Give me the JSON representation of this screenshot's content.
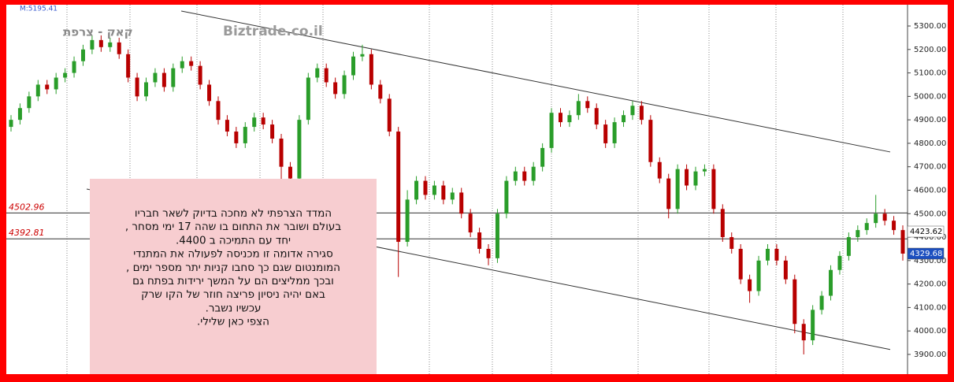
{
  "chart_data": {
    "type": "candlestick",
    "title": "קאק - צרפת",
    "watermark": "Biztrade.co.il",
    "corner_label": "M:5195.41",
    "ylim": [
      3826,
      5384
    ],
    "yticks": [
      {
        "value": 3900,
        "label": "3900.00"
      },
      {
        "value": 4000,
        "label": "4000.00"
      },
      {
        "value": 4100,
        "label": "4100.00"
      },
      {
        "value": 4200,
        "label": "4200.00"
      },
      {
        "value": 4300,
        "label": "4300.00"
      },
      {
        "value": 4400,
        "label": "4400.00"
      },
      {
        "value": 4500,
        "label": "4500.00"
      },
      {
        "value": 4600,
        "label": "4600.00"
      },
      {
        "value": 4700,
        "label": "4700.00"
      },
      {
        "value": 4800,
        "label": "4800.00"
      },
      {
        "value": 4900,
        "label": "4900.00"
      },
      {
        "value": 5000,
        "label": "5000.00"
      },
      {
        "value": 5100,
        "label": "5100.00"
      },
      {
        "value": 5200,
        "label": "5200.00"
      },
      {
        "value": 5300,
        "label": "5300.00"
      }
    ],
    "up_color": "#2a9d2a",
    "down_color": "#b80000",
    "open": [
      4870,
      4900,
      4950,
      5000,
      5050,
      5030,
      5080,
      5100,
      5150,
      5200,
      5240,
      5210,
      5230,
      5180,
      5080,
      5000,
      5060,
      5100,
      5040,
      5120,
      5150,
      5130,
      5050,
      4980,
      4900,
      4850,
      4800,
      4870,
      4910,
      4880,
      4820,
      4700,
      4650,
      4900,
      5080,
      5120,
      5060,
      5010,
      5090,
      5170,
      5180,
      5050,
      4990,
      4850,
      4380,
      4560,
      4640,
      4580,
      4620,
      4560,
      4590,
      4500,
      4420,
      4350,
      4310,
      4500,
      4640,
      4680,
      4640,
      4700,
      4780,
      4930,
      4890,
      4920,
      4980,
      4950,
      4880,
      4800,
      4890,
      4920,
      4960,
      4900,
      4720,
      4650,
      4520,
      4690,
      4620,
      4680,
      4690,
      4520,
      4400,
      4350,
      4220,
      4170,
      4300,
      4350,
      4300,
      4220,
      4030,
      3960,
      4090,
      4150,
      4260,
      4320,
      4400,
      4430,
      4460,
      4500,
      4470,
      4430
    ],
    "high": [
      4920,
      4970,
      5020,
      5070,
      5070,
      5100,
      5120,
      5170,
      5220,
      5260,
      5260,
      5250,
      5250,
      5200,
      5100,
      5080,
      5120,
      5120,
      5140,
      5170,
      5170,
      5150,
      5070,
      5000,
      4920,
      4870,
      4890,
      4930,
      4930,
      4900,
      4840,
      4720,
      4920,
      5100,
      5140,
      5140,
      5080,
      5110,
      5190,
      5220,
      5200,
      5070,
      5010,
      4870,
      4600,
      4660,
      4660,
      4640,
      4640,
      4610,
      4610,
      4520,
      4440,
      4370,
      4520,
      4660,
      4700,
      4700,
      4720,
      4800,
      4950,
      4950,
      4940,
      5010,
      5000,
      4970,
      4900,
      4910,
      4940,
      4980,
      4980,
      4920,
      4740,
      4670,
      4710,
      4710,
      4700,
      4710,
      4710,
      4540,
      4420,
      4370,
      4240,
      4320,
      4370,
      4370,
      4320,
      4240,
      4050,
      4110,
      4170,
      4280,
      4340,
      4420,
      4450,
      4480,
      4580,
      4520,
      4490,
      4450
    ],
    "low": [
      4850,
      4880,
      4930,
      4980,
      5010,
      5010,
      5060,
      5080,
      5130,
      5180,
      5190,
      5190,
      5160,
      5060,
      4980,
      4980,
      5040,
      5020,
      5020,
      5100,
      5110,
      5030,
      4960,
      4880,
      4830,
      4780,
      4780,
      4850,
      4860,
      4800,
      4600,
      4630,
      4630,
      4880,
      5060,
      5040,
      4990,
      4990,
      5070,
      5150,
      5030,
      4970,
      4830,
      4230,
      4360,
      4540,
      4560,
      4560,
      4540,
      4540,
      4480,
      4400,
      4330,
      4280,
      4290,
      4480,
      4620,
      4620,
      4620,
      4680,
      4760,
      4870,
      4870,
      4900,
      4930,
      4860,
      4780,
      4780,
      4870,
      4900,
      4880,
      4700,
      4630,
      4480,
      4500,
      4600,
      4600,
      4660,
      4500,
      4380,
      4330,
      4200,
      4120,
      4150,
      4280,
      4280,
      4200,
      3990,
      3900,
      3940,
      4070,
      4130,
      4240,
      4300,
      4380,
      4410,
      4440,
      4450,
      4410,
      4300
    ],
    "close": [
      4900,
      4950,
      5000,
      5050,
      5030,
      5080,
      5100,
      5150,
      5200,
      5240,
      5210,
      5230,
      5180,
      5080,
      5000,
      5060,
      5100,
      5040,
      5120,
      5150,
      5130,
      5050,
      4980,
      4900,
      4850,
      4800,
      4870,
      4910,
      4880,
      4820,
      4700,
      4650,
      4900,
      5080,
      5120,
      5060,
      5010,
      5090,
      5170,
      5180,
      5050,
      4990,
      4850,
      4380,
      4560,
      4640,
      4580,
      4620,
      4560,
      4590,
      4500,
      4420,
      4350,
      4310,
      4500,
      4640,
      4680,
      4640,
      4700,
      4780,
      4930,
      4890,
      4920,
      4980,
      4950,
      4880,
      4800,
      4890,
      4920,
      4960,
      4900,
      4720,
      4650,
      4520,
      4690,
      4620,
      4680,
      4690,
      4520,
      4400,
      4350,
      4220,
      4170,
      4300,
      4350,
      4300,
      4220,
      4030,
      3960,
      4090,
      4150,
      4260,
      4320,
      4400,
      4430,
      4460,
      4500,
      4470,
      4430,
      4329.68
    ],
    "levels": [
      4502.96,
      4392.81
    ],
    "price_labels": [
      {
        "value": 4423.62,
        "fill": "#ffffff",
        "text_color": "#000000"
      },
      {
        "value": 4329.68,
        "fill": "#1c4fbf",
        "text_color": "#ffffff"
      }
    ],
    "trend_lines": [
      {
        "x": [
          18.9,
          97.6
        ],
        "y": [
          5364,
          4763
        ]
      },
      {
        "x": [
          8.4,
          97.6
        ],
        "y": [
          4605,
          3921
        ]
      }
    ],
    "annotation": [
      "המדד הצרפתי לא מחכה בדיוק לשאר חבריו",
      "בעולם ושובר את התחום בו שהה 17 ימי מסחר ,",
      "יחד עם  התמיכה ב 4400.",
      "סגירה אדומה זו  מכניסה לפעולה את המתנדי",
      "המומנטום שגם כך סחבו קניות יתר מספר ימים ,",
      "ובכך  ממליצים הם על המשך ירידות בפתח גם",
      "באם יהיה ניסיון פריצה חוזר של הקו שרק",
      "עכשיו נשבר.",
      "הצפי כאן  שלילי."
    ]
  }
}
